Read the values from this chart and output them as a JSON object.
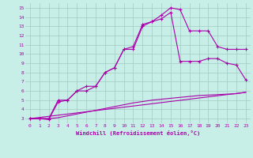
{
  "title": "Windchill (Refroidissement éolien,°C)",
  "background_color": "#c8eee8",
  "grid_color": "#a0ccc0",
  "line_color": "#aa00aa",
  "xlim": [
    -0.5,
    23.5
  ],
  "ylim": [
    2.5,
    15.5
  ],
  "xticks": [
    0,
    1,
    2,
    3,
    4,
    5,
    6,
    7,
    8,
    9,
    10,
    11,
    12,
    13,
    14,
    15,
    16,
    17,
    18,
    19,
    20,
    21,
    22,
    23
  ],
  "yticks": [
    3,
    4,
    5,
    6,
    7,
    8,
    9,
    10,
    11,
    12,
    13,
    14,
    15
  ],
  "line1_x": [
    0,
    1,
    2,
    3,
    4,
    5,
    6,
    7,
    8,
    9,
    10,
    11,
    12,
    13,
    14,
    15,
    16,
    17,
    18,
    19,
    20,
    21,
    22,
    23
  ],
  "line1_y": [
    3,
    3,
    3,
    5,
    5,
    6,
    6.5,
    6.5,
    8,
    8.5,
    10.5,
    10.8,
    13.2,
    13.5,
    14.2,
    15.0,
    14.8,
    12.5,
    12.5,
    12.5,
    10.8,
    10.5,
    10.5,
    10.5
  ],
  "line2_x": [
    0,
    1,
    2,
    3,
    4,
    5,
    6,
    7,
    8,
    9,
    10,
    11,
    12,
    13,
    14,
    15,
    16,
    17,
    18,
    19,
    20,
    21,
    22,
    23
  ],
  "line2_y": [
    3,
    3,
    2.9,
    4.8,
    5.0,
    6.0,
    6.0,
    6.5,
    8.0,
    8.5,
    10.5,
    10.5,
    13.0,
    13.5,
    13.8,
    14.5,
    9.2,
    9.2,
    9.2,
    9.5,
    9.5,
    9.0,
    8.8,
    7.2
  ],
  "line3_x": [
    0,
    1,
    2,
    3,
    4,
    5,
    6,
    7,
    8,
    9,
    10,
    11,
    12,
    13,
    14,
    15,
    16,
    17,
    18,
    19,
    20,
    21,
    22,
    23
  ],
  "line3_y": [
    3,
    3,
    3,
    3.1,
    3.3,
    3.5,
    3.7,
    3.9,
    4.1,
    4.3,
    4.5,
    4.7,
    4.85,
    5.0,
    5.1,
    5.2,
    5.3,
    5.4,
    5.5,
    5.55,
    5.6,
    5.65,
    5.7,
    5.85
  ],
  "line4_x": [
    0,
    23
  ],
  "line4_y": [
    3,
    5.85
  ]
}
